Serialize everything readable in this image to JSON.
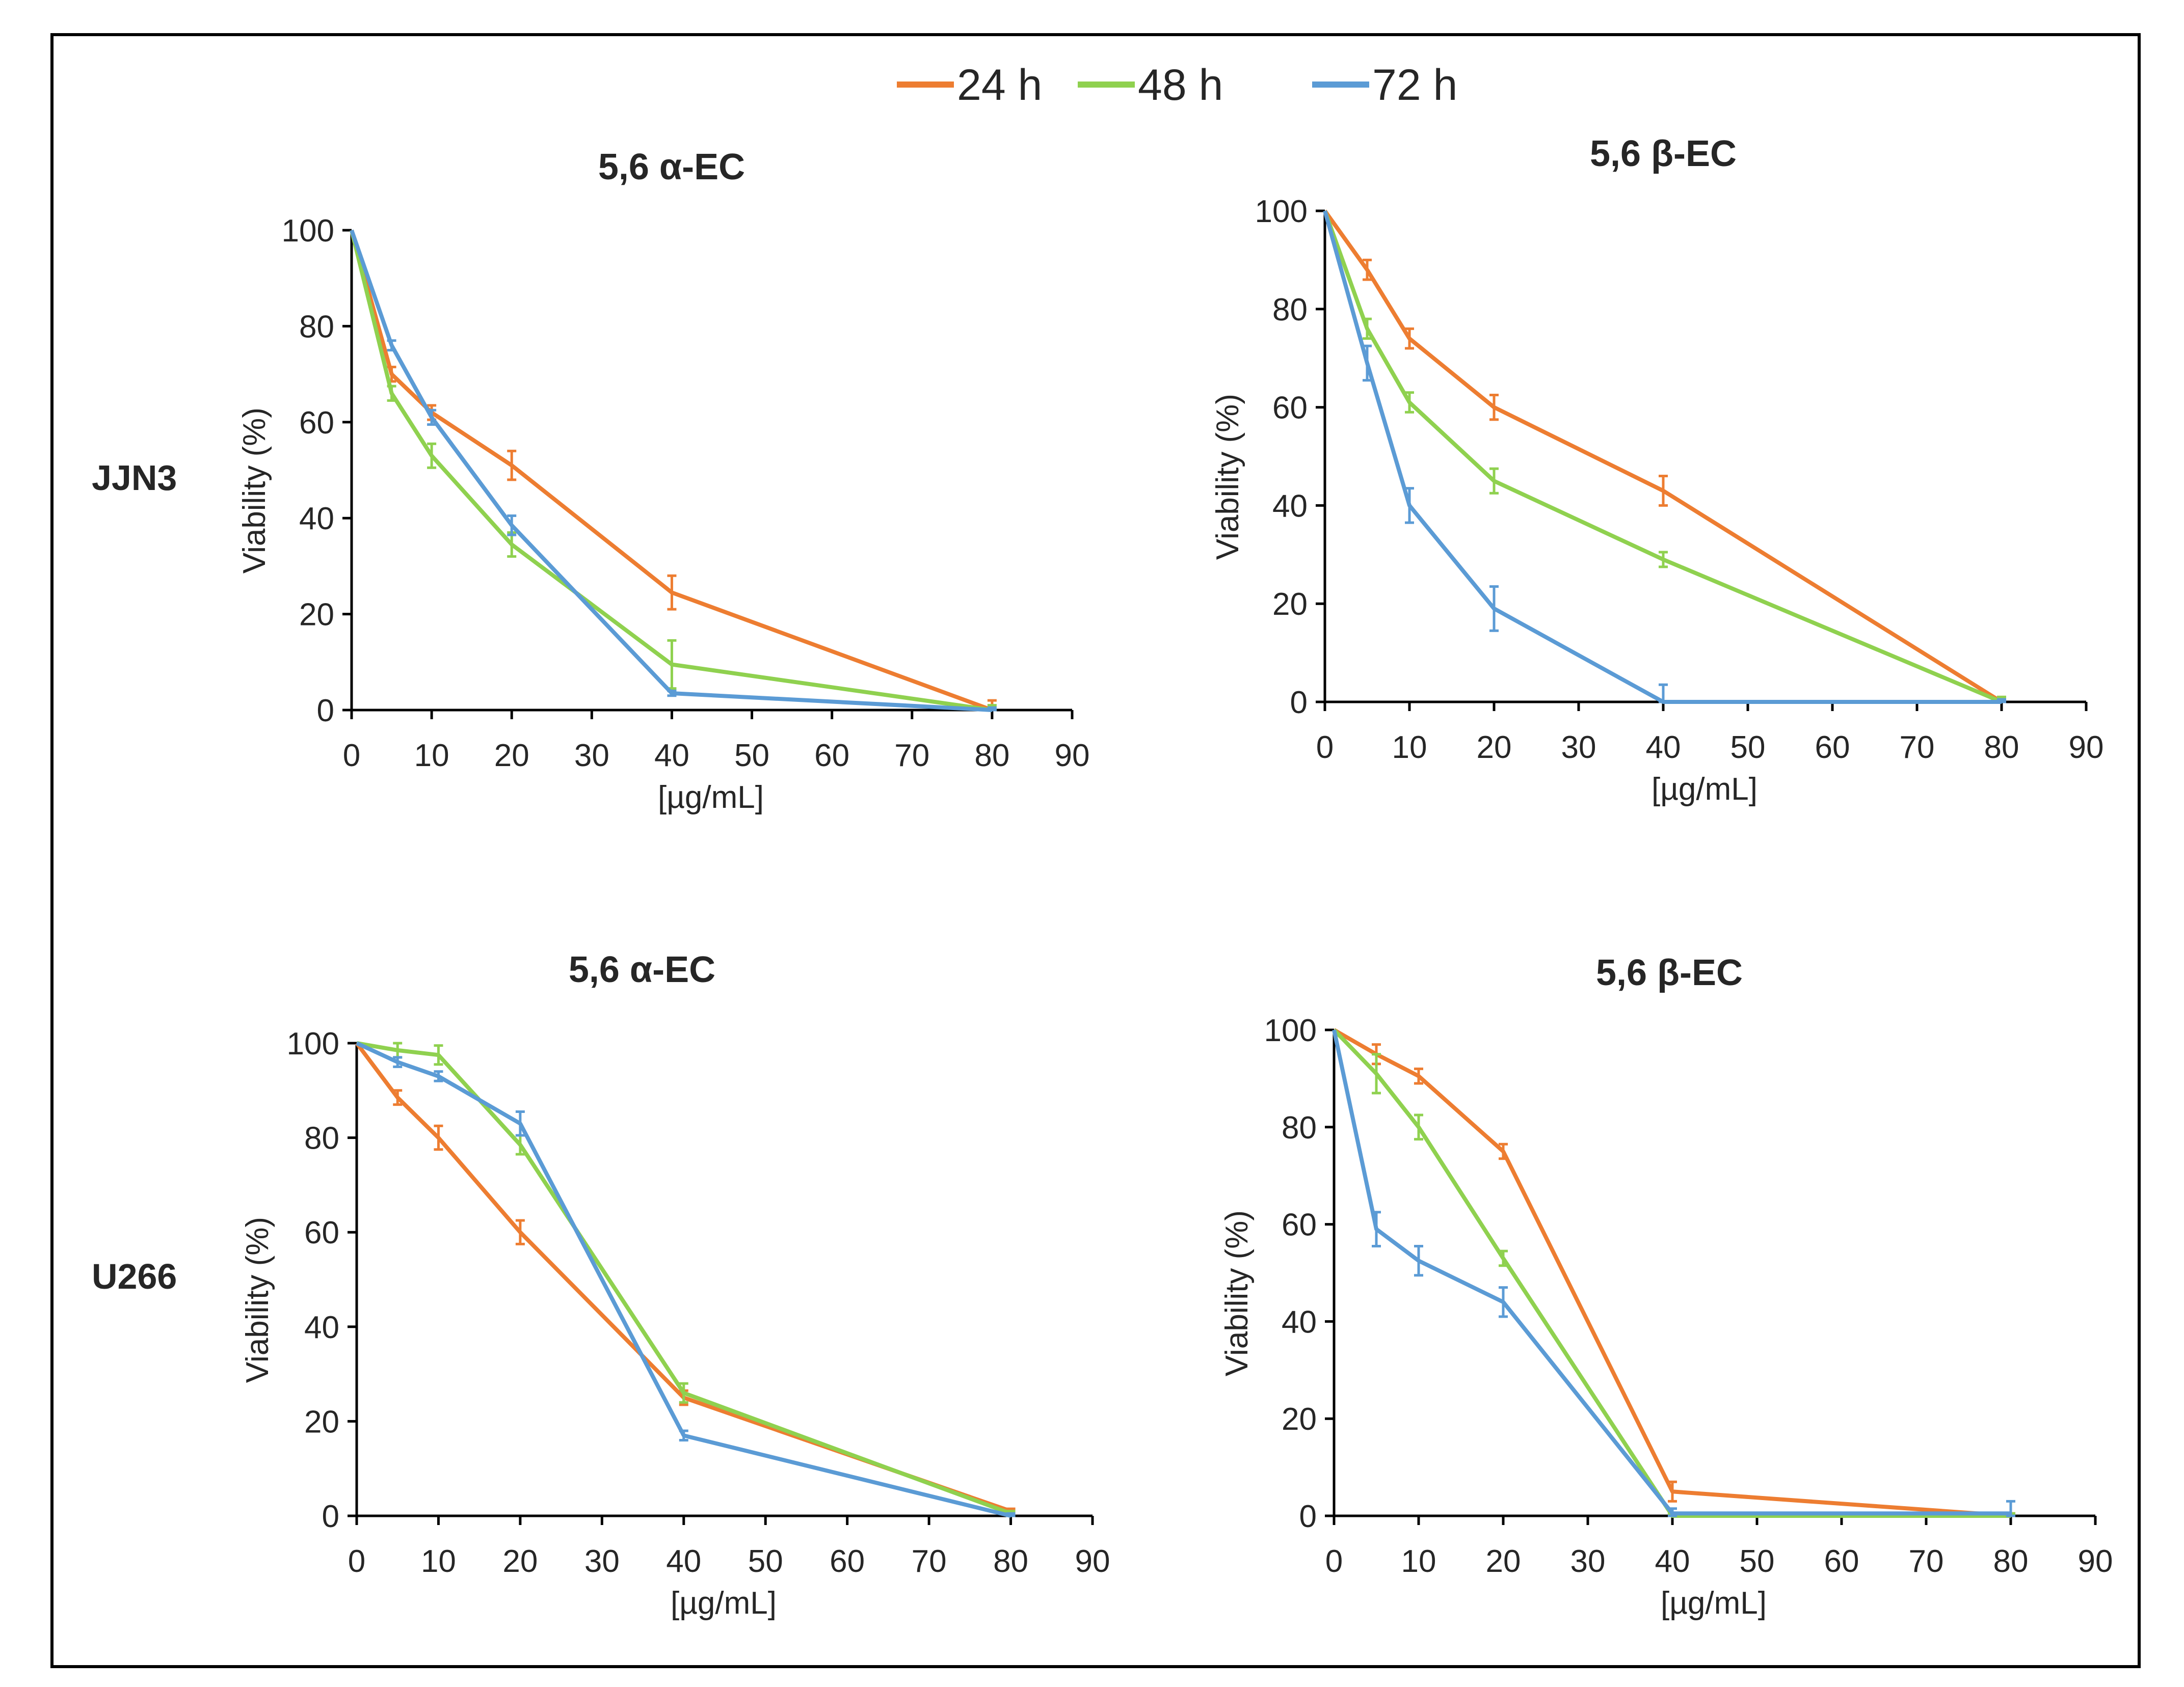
{
  "legend": [
    {
      "label": "24 h",
      "color": "#ED7D31"
    },
    {
      "label": "48 h",
      "color": "#8FD14F"
    },
    {
      "label": "72 h",
      "color": "#5B9BD5"
    }
  ],
  "row_labels": [
    "JJN3",
    "U266"
  ],
  "chart_data": [
    {
      "type": "line",
      "title": "5,6 α-EC",
      "row": "JJN3",
      "xlabel": "[µg/mL]",
      "ylabel": "Viability (%)",
      "xlim": [
        0,
        90
      ],
      "ylim": [
        0,
        100
      ],
      "xticks": [
        0,
        10,
        20,
        30,
        40,
        50,
        60,
        70,
        80,
        90
      ],
      "yticks": [
        0,
        20,
        40,
        60,
        80,
        100
      ],
      "x": [
        0,
        5,
        10,
        20,
        40,
        80
      ],
      "series": [
        {
          "name": "24 h",
          "color": "#ED7D31",
          "values": [
            100,
            70,
            62,
            51,
            24.5,
            0
          ],
          "errors": [
            0,
            1.5,
            1.5,
            3,
            3.5,
            2
          ]
        },
        {
          "name": "48 h",
          "color": "#8FD14F",
          "values": [
            100,
            66,
            53,
            34.5,
            9.5,
            0
          ],
          "errors": [
            0,
            1.5,
            2.5,
            2.5,
            5,
            1
          ]
        },
        {
          "name": "72 h",
          "color": "#5B9BD5",
          "values": [
            100,
            76,
            61,
            38.5,
            3.5,
            0
          ],
          "errors": [
            0,
            1,
            1.5,
            2,
            0.5,
            0.5
          ]
        }
      ]
    },
    {
      "type": "line",
      "title": "5,6 β-EC",
      "row": "JJN3",
      "xlabel": "[µg/mL]",
      "ylabel": "Viability (%)",
      "xlim": [
        0,
        90
      ],
      "ylim": [
        0,
        100
      ],
      "xticks": [
        0,
        10,
        20,
        30,
        40,
        50,
        60,
        70,
        80,
        90
      ],
      "yticks": [
        0,
        20,
        40,
        60,
        80,
        100
      ],
      "x": [
        0,
        5,
        10,
        20,
        40,
        80
      ],
      "series": [
        {
          "name": "24 h",
          "color": "#ED7D31",
          "values": [
            100,
            88,
            74,
            60,
            43,
            0
          ],
          "errors": [
            0,
            2,
            2,
            2.5,
            3,
            1
          ]
        },
        {
          "name": "48 h",
          "color": "#8FD14F",
          "values": [
            100,
            76,
            61,
            45,
            29,
            0
          ],
          "errors": [
            0,
            2,
            2,
            2.5,
            1.5,
            1
          ]
        },
        {
          "name": "72 h",
          "color": "#5B9BD5",
          "values": [
            100,
            69,
            40,
            19,
            0,
            0
          ],
          "errors": [
            0,
            3.5,
            3.5,
            4.5,
            3.5,
            0.5
          ]
        }
      ]
    },
    {
      "type": "line",
      "title": "5,6 α-EC",
      "row": "U266",
      "xlabel": "[µg/mL]",
      "ylabel": "Viability  (%)",
      "xlim": [
        0,
        90
      ],
      "ylim": [
        0,
        100
      ],
      "xticks": [
        0,
        10,
        20,
        30,
        40,
        50,
        60,
        70,
        80,
        90
      ],
      "yticks": [
        0,
        20,
        40,
        60,
        80,
        100
      ],
      "x": [
        0,
        5,
        10,
        20,
        40,
        80
      ],
      "series": [
        {
          "name": "24 h",
          "color": "#ED7D31",
          "values": [
            100,
            88.5,
            80,
            60,
            25,
            1
          ],
          "errors": [
            0,
            1.5,
            2.5,
            2.5,
            1.5,
            0.5
          ]
        },
        {
          "name": "48 h",
          "color": "#8FD14F",
          "values": [
            100,
            98.5,
            97.5,
            78.5,
            26,
            0.5
          ],
          "errors": [
            0,
            1.5,
            2,
            2,
            2,
            0.5
          ]
        },
        {
          "name": "72 h",
          "color": "#5B9BD5",
          "values": [
            100,
            96,
            93,
            83,
            17,
            0
          ],
          "errors": [
            0,
            1,
            1,
            2.5,
            1,
            0.5
          ]
        }
      ]
    },
    {
      "type": "line",
      "title": "5,6 β-EC",
      "row": "U266",
      "xlabel": "[µg/mL]",
      "ylabel": "Viability (%)",
      "xlim": [
        0,
        90
      ],
      "ylim": [
        0,
        100
      ],
      "xticks": [
        0,
        10,
        20,
        30,
        40,
        50,
        60,
        70,
        80,
        90
      ],
      "yticks": [
        0,
        20,
        40,
        60,
        80,
        100
      ],
      "x": [
        0,
        5,
        10,
        20,
        40,
        80
      ],
      "series": [
        {
          "name": "24 h",
          "color": "#ED7D31",
          "values": [
            100,
            95,
            90.5,
            75,
            5,
            0
          ],
          "errors": [
            0,
            2,
            1.5,
            1.5,
            2,
            0.5
          ]
        },
        {
          "name": "48 h",
          "color": "#8FD14F",
          "values": [
            100,
            91,
            80,
            53,
            0,
            0
          ],
          "errors": [
            0,
            4,
            2.5,
            1.5,
            0.5,
            0.5
          ]
        },
        {
          "name": "72 h",
          "color": "#5B9BD5",
          "values": [
            100,
            59,
            52.5,
            44,
            0.5,
            0.5
          ],
          "errors": [
            0,
            3.5,
            3,
            3,
            1,
            2.5
          ]
        }
      ]
    }
  ]
}
